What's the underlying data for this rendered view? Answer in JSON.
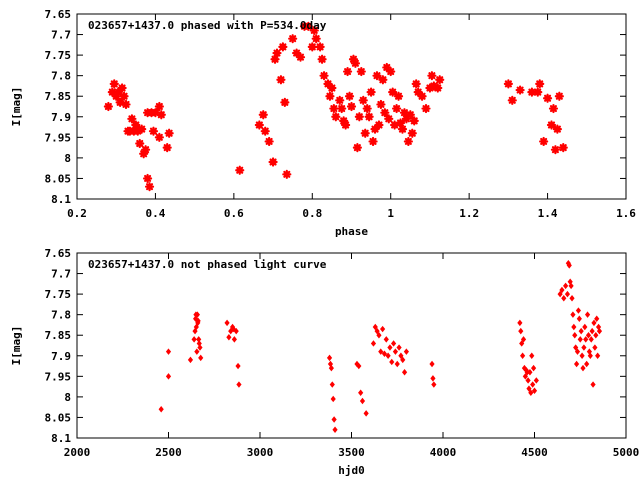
{
  "chart_data": [
    {
      "type": "scatter",
      "title": "023657+1437.0 phased with P=534.0day",
      "xlabel": "phase",
      "ylabel": "I[mag]",
      "xlim": [
        0.2,
        1.6
      ],
      "ylim": [
        7.65,
        8.1
      ],
      "y_inverted": true,
      "xticks": [
        "0.2",
        "0.4",
        "0.6",
        "0.8",
        "1",
        "1.2",
        "1.4",
        "1.6"
      ],
      "yticks": [
        "7.65",
        "7.7",
        "7.75",
        "7.8",
        "7.85",
        "7.9",
        "7.95",
        "8",
        "8.05",
        "8.1"
      ],
      "marker": "star",
      "color": "#ff0000",
      "points": [
        [
          0.28,
          7.875
        ],
        [
          0.29,
          7.84
        ],
        [
          0.295,
          7.82
        ],
        [
          0.3,
          7.85
        ],
        [
          0.305,
          7.84
        ],
        [
          0.31,
          7.865
        ],
        [
          0.315,
          7.83
        ],
        [
          0.32,
          7.85
        ],
        [
          0.325,
          7.87
        ],
        [
          0.33,
          7.935
        ],
        [
          0.335,
          7.935
        ],
        [
          0.34,
          7.905
        ],
        [
          0.345,
          7.935
        ],
        [
          0.35,
          7.92
        ],
        [
          0.355,
          7.935
        ],
        [
          0.36,
          7.965
        ],
        [
          0.365,
          7.93
        ],
        [
          0.37,
          7.99
        ],
        [
          0.375,
          7.98
        ],
        [
          0.38,
          7.89
        ],
        [
          0.38,
          8.05
        ],
        [
          0.385,
          8.07
        ],
        [
          0.39,
          7.89
        ],
        [
          0.395,
          7.935
        ],
        [
          0.4,
          7.89
        ],
        [
          0.41,
          7.875
        ],
        [
          0.41,
          7.95
        ],
        [
          0.415,
          7.895
        ],
        [
          0.43,
          7.975
        ],
        [
          0.435,
          7.94
        ],
        [
          0.615,
          8.03
        ],
        [
          0.665,
          7.92
        ],
        [
          0.675,
          7.895
        ],
        [
          0.68,
          7.935
        ],
        [
          0.69,
          7.96
        ],
        [
          0.7,
          8.01
        ],
        [
          0.705,
          7.76
        ],
        [
          0.71,
          7.745
        ],
        [
          0.72,
          7.81
        ],
        [
          0.725,
          7.73
        ],
        [
          0.73,
          7.865
        ],
        [
          0.735,
          8.04
        ],
        [
          0.75,
          7.71
        ],
        [
          0.76,
          7.745
        ],
        [
          0.77,
          7.755
        ],
        [
          0.78,
          7.68
        ],
        [
          0.79,
          7.68
        ],
        [
          0.8,
          7.73
        ],
        [
          0.805,
          7.69
        ],
        [
          0.81,
          7.71
        ],
        [
          0.82,
          7.73
        ],
        [
          0.825,
          7.76
        ],
        [
          0.83,
          7.8
        ],
        [
          0.84,
          7.82
        ],
        [
          0.845,
          7.85
        ],
        [
          0.85,
          7.83
        ],
        [
          0.855,
          7.88
        ],
        [
          0.86,
          7.9
        ],
        [
          0.87,
          7.86
        ],
        [
          0.875,
          7.88
        ],
        [
          0.88,
          7.91
        ],
        [
          0.885,
          7.92
        ],
        [
          0.89,
          7.79
        ],
        [
          0.895,
          7.85
        ],
        [
          0.9,
          7.875
        ],
        [
          0.905,
          7.76
        ],
        [
          0.91,
          7.77
        ],
        [
          0.915,
          7.975
        ],
        [
          0.92,
          7.9
        ],
        [
          0.925,
          7.79
        ],
        [
          0.93,
          7.86
        ],
        [
          0.935,
          7.94
        ],
        [
          0.94,
          7.88
        ],
        [
          0.945,
          7.9
        ],
        [
          0.95,
          7.84
        ],
        [
          0.955,
          7.96
        ],
        [
          0.96,
          7.93
        ],
        [
          0.965,
          7.8
        ],
        [
          0.97,
          7.92
        ],
        [
          0.975,
          7.87
        ],
        [
          0.98,
          7.81
        ],
        [
          0.985,
          7.89
        ],
        [
          0.99,
          7.78
        ],
        [
          0.995,
          7.905
        ],
        [
          1.0,
          7.79
        ],
        [
          1.005,
          7.84
        ],
        [
          1.01,
          7.92
        ],
        [
          1.015,
          7.88
        ],
        [
          1.02,
          7.85
        ],
        [
          1.025,
          7.915
        ],
        [
          1.03,
          7.93
        ],
        [
          1.035,
          7.89
        ],
        [
          1.04,
          7.905
        ],
        [
          1.045,
          7.96
        ],
        [
          1.05,
          7.895
        ],
        [
          1.055,
          7.94
        ],
        [
          1.06,
          7.91
        ],
        [
          1.065,
          7.82
        ],
        [
          1.07,
          7.84
        ],
        [
          1.08,
          7.85
        ],
        [
          1.09,
          7.88
        ],
        [
          1.1,
          7.83
        ],
        [
          1.105,
          7.8
        ],
        [
          1.11,
          7.825
        ],
        [
          1.12,
          7.83
        ],
        [
          1.125,
          7.81
        ],
        [
          1.3,
          7.82
        ],
        [
          1.31,
          7.86
        ],
        [
          1.33,
          7.835
        ],
        [
          1.36,
          7.84
        ],
        [
          1.375,
          7.84
        ],
        [
          1.38,
          7.82
        ],
        [
          1.39,
          7.96
        ],
        [
          1.4,
          7.855
        ],
        [
          1.41,
          7.92
        ],
        [
          1.415,
          7.88
        ],
        [
          1.42,
          7.98
        ],
        [
          1.425,
          7.93
        ],
        [
          1.43,
          7.85
        ],
        [
          1.44,
          7.975
        ]
      ]
    },
    {
      "type": "scatter",
      "title": "023657+1437.0 not phased light curve",
      "xlabel": "hjd0",
      "ylabel": "I[mag]",
      "xlim": [
        2000,
        5000
      ],
      "ylim": [
        7.65,
        8.1
      ],
      "y_inverted": true,
      "xticks": [
        "2000",
        "2500",
        "3000",
        "3500",
        "4000",
        "4500",
        "5000"
      ],
      "yticks": [
        "7.65",
        "7.7",
        "7.75",
        "7.8",
        "7.85",
        "7.9",
        "7.95",
        "8",
        "8.05",
        "8.1"
      ],
      "marker": "diamond",
      "color": "#ff0000",
      "points": [
        [
          2460,
          8.03
        ],
        [
          2500,
          7.89
        ],
        [
          2500,
          7.95
        ],
        [
          2620,
          7.91
        ],
        [
          2640,
          7.86
        ],
        [
          2645,
          7.84
        ],
        [
          2648,
          7.81
        ],
        [
          2650,
          7.8
        ],
        [
          2652,
          7.83
        ],
        [
          2655,
          7.89
        ],
        [
          2658,
          7.8
        ],
        [
          2660,
          7.82
        ],
        [
          2662,
          7.815
        ],
        [
          2665,
          7.86
        ],
        [
          2668,
          7.87
        ],
        [
          2672,
          7.88
        ],
        [
          2676,
          7.905
        ],
        [
          2820,
          7.82
        ],
        [
          2830,
          7.855
        ],
        [
          2840,
          7.84
        ],
        [
          2850,
          7.83
        ],
        [
          2855,
          7.835
        ],
        [
          2860,
          7.86
        ],
        [
          2870,
          7.84
        ],
        [
          2880,
          7.925
        ],
        [
          2885,
          7.97
        ],
        [
          3380,
          7.905
        ],
        [
          3385,
          7.92
        ],
        [
          3390,
          7.93
        ],
        [
          3395,
          7.97
        ],
        [
          3400,
          8.005
        ],
        [
          3405,
          8.055
        ],
        [
          3410,
          8.08
        ],
        [
          3530,
          7.92
        ],
        [
          3540,
          7.925
        ],
        [
          3550,
          7.99
        ],
        [
          3560,
          8.01
        ],
        [
          3580,
          8.04
        ],
        [
          3620,
          7.87
        ],
        [
          3630,
          7.83
        ],
        [
          3640,
          7.84
        ],
        [
          3650,
          7.85
        ],
        [
          3660,
          7.89
        ],
        [
          3670,
          7.835
        ],
        [
          3680,
          7.895
        ],
        [
          3690,
          7.86
        ],
        [
          3700,
          7.9
        ],
        [
          3710,
          7.88
        ],
        [
          3720,
          7.915
        ],
        [
          3730,
          7.87
        ],
        [
          3740,
          7.89
        ],
        [
          3750,
          7.92
        ],
        [
          3760,
          7.88
        ],
        [
          3770,
          7.9
        ],
        [
          3780,
          7.91
        ],
        [
          3790,
          7.94
        ],
        [
          3800,
          7.89
        ],
        [
          3940,
          7.92
        ],
        [
          3945,
          7.955
        ],
        [
          3950,
          7.97
        ],
        [
          4420,
          7.82
        ],
        [
          4425,
          7.84
        ],
        [
          4430,
          7.87
        ],
        [
          4435,
          7.9
        ],
        [
          4440,
          7.86
        ],
        [
          4445,
          7.93
        ],
        [
          4450,
          7.95
        ],
        [
          4455,
          7.935
        ],
        [
          4460,
          7.94
        ],
        [
          4465,
          7.96
        ],
        [
          4470,
          7.98
        ],
        [
          4475,
          7.94
        ],
        [
          4480,
          7.99
        ],
        [
          4485,
          7.9
        ],
        [
          4490,
          7.97
        ],
        [
          4495,
          7.93
        ],
        [
          4500,
          7.985
        ],
        [
          4510,
          7.96
        ],
        [
          4640,
          7.75
        ],
        [
          4650,
          7.74
        ],
        [
          4660,
          7.76
        ],
        [
          4670,
          7.73
        ],
        [
          4680,
          7.75
        ],
        [
          4685,
          7.675
        ],
        [
          4690,
          7.68
        ],
        [
          4695,
          7.72
        ],
        [
          4700,
          7.73
        ],
        [
          4705,
          7.76
        ],
        [
          4710,
          7.8
        ],
        [
          4715,
          7.83
        ],
        [
          4720,
          7.85
        ],
        [
          4725,
          7.88
        ],
        [
          4730,
          7.92
        ],
        [
          4735,
          7.89
        ],
        [
          4740,
          7.79
        ],
        [
          4745,
          7.81
        ],
        [
          4750,
          7.86
        ],
        [
          4755,
          7.84
        ],
        [
          4760,
          7.9
        ],
        [
          4765,
          7.93
        ],
        [
          4770,
          7.88
        ],
        [
          4775,
          7.83
        ],
        [
          4780,
          7.86
        ],
        [
          4785,
          7.92
        ],
        [
          4790,
          7.8
        ],
        [
          4795,
          7.85
        ],
        [
          4800,
          7.89
        ],
        [
          4805,
          7.9
        ],
        [
          4810,
          7.86
        ],
        [
          4815,
          7.84
        ],
        [
          4820,
          7.97
        ],
        [
          4825,
          7.82
        ],
        [
          4830,
          7.88
        ],
        [
          4835,
          7.85
        ],
        [
          4840,
          7.81
        ],
        [
          4845,
          7.9
        ],
        [
          4850,
          7.83
        ],
        [
          4855,
          7.84
        ]
      ]
    }
  ]
}
